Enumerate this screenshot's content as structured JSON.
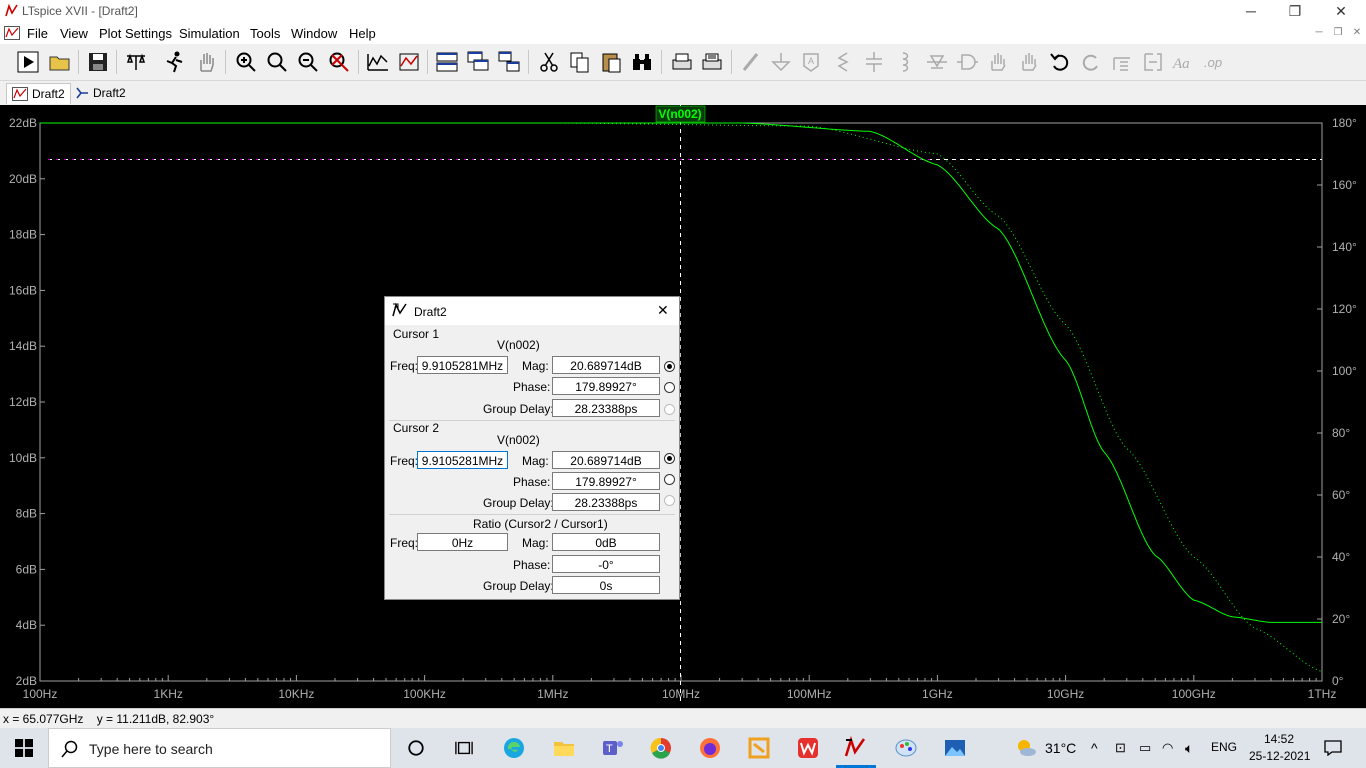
{
  "window": {
    "title": "LTspice XVII - [Draft2]",
    "minimize": "─",
    "restore": "❐",
    "close": "✕"
  },
  "menu": [
    "File",
    "View",
    "Plot Settings",
    "Simulation",
    "Tools",
    "Window",
    "Help"
  ],
  "tabs": [
    {
      "label": "Draft2",
      "icon": "waveform-icon"
    },
    {
      "label": "Draft2",
      "icon": "schematic-icon"
    }
  ],
  "plot": {
    "trace_label": "V(n002)",
    "left_axis_labels": [
      "22dB",
      "20dB",
      "18dB",
      "16dB",
      "14dB",
      "12dB",
      "10dB",
      "8dB",
      "6dB",
      "4dB",
      "2dB"
    ],
    "right_axis_labels": [
      "180°",
      "160°",
      "140°",
      "120°",
      "100°",
      "80°",
      "60°",
      "40°",
      "20°",
      "0°"
    ],
    "x_axis_labels": [
      "100Hz",
      "1KHz",
      "10KHz",
      "100KHz",
      "1MHz",
      "10MHz",
      "100MHz",
      "1GHz",
      "10GHz",
      "100GHz",
      "1THz"
    ],
    "colors": {
      "background": "#000000",
      "trace": "#00ff00",
      "axis": "#a0a0a0",
      "cursor": "#ffffff",
      "grid_dot": "#c000c0"
    }
  },
  "chart_data": {
    "type": "line",
    "xlabel": "",
    "ylabel": "",
    "x_scale": "log",
    "xlim_hz": [
      100,
      1000000000000
    ],
    "ylim_db": [
      2,
      22
    ],
    "ylim_deg_right": [
      0,
      180
    ],
    "series": [
      {
        "name": "V(n002)",
        "kind": "magnitude",
        "points": [
          {
            "x": 100,
            "y": 22
          },
          {
            "x": 1000000,
            "y": 22
          },
          {
            "x": 30000000,
            "y": 22
          },
          {
            "x": 300000000,
            "y": 21.7
          },
          {
            "x": 1000000000,
            "y": 20.5
          },
          {
            "x": 3000000000,
            "y": 18.2
          },
          {
            "x": 10000000000,
            "y": 13.5
          },
          {
            "x": 20000000000,
            "y": 10.2
          },
          {
            "x": 50000000000,
            "y": 6.5
          },
          {
            "x": 100000000000,
            "y": 4.9
          },
          {
            "x": 200000000000,
            "y": 4.3
          },
          {
            "x": 400000000000,
            "y": 4.1
          },
          {
            "x": 1000000000000,
            "y": 4.1
          }
        ]
      },
      {
        "name": "V(n002)",
        "kind": "phase",
        "points": [
          {
            "x": 100,
            "y": 180
          },
          {
            "x": 1000000,
            "y": 180
          },
          {
            "x": 100000000,
            "y": 179
          },
          {
            "x": 1000000000,
            "y": 170
          },
          {
            "x": 3000000000,
            "y": 150
          },
          {
            "x": 10000000000,
            "y": 115
          },
          {
            "x": 30000000000,
            "y": 75
          },
          {
            "x": 100000000000,
            "y": 40
          },
          {
            "x": 300000000000,
            "y": 17
          },
          {
            "x": 1000000000000,
            "y": 3
          }
        ]
      }
    ],
    "cursor_x_hz": 9910528.1,
    "cursor_y_db": 20.689714
  },
  "status": {
    "text": "x = 65.077GHz    y = 11.211dB, 82.903°"
  },
  "dialog": {
    "title": "Draft2",
    "close": "✕",
    "cursor1": {
      "group": "Cursor 1",
      "signal": "V(n002)",
      "freq_label": "Freq:",
      "freq": "9.9105281MHz",
      "mag_label": "Mag:",
      "mag": "20.689714dB",
      "phase_label": "Phase:",
      "phase": "179.89927°",
      "gd_label": "Group Delay:",
      "gd": "28.23388ps"
    },
    "cursor2": {
      "group": "Cursor 2",
      "signal": "V(n002)",
      "freq_label": "Freq:",
      "freq": "9.9105281MHz",
      "mag_label": "Mag:",
      "mag": "20.689714dB",
      "phase_label": "Phase:",
      "phase": "179.89927°",
      "gd_label": "Group Delay:",
      "gd": "28.23388ps"
    },
    "ratio": {
      "group": "Ratio (Cursor2 / Cursor1)",
      "freq_label": "Freq:",
      "freq": "0Hz",
      "mag_label": "Mag:",
      "mag": "0dB",
      "phase_label": "Phase:",
      "phase": "-0°",
      "gd_label": "Group Delay:",
      "gd": "0s"
    }
  },
  "taskbar": {
    "search_placeholder": "Type here to search",
    "weather": "31°C",
    "lang": "ENG",
    "time": "14:52",
    "date": "25-12-2021"
  }
}
